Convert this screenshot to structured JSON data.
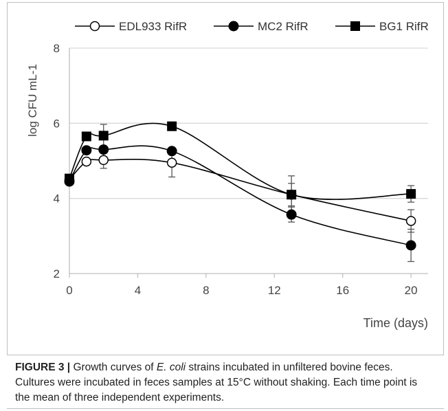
{
  "chart_data": {
    "type": "line",
    "xlabel": "Time (days)",
    "ylabel": "log CFU mL-1",
    "xlim": [
      0,
      21
    ],
    "ylim": [
      2,
      8
    ],
    "xticks": [
      "0",
      "4",
      "8",
      "12",
      "16",
      "20"
    ],
    "yticks": [
      "2",
      "4",
      "6",
      "8"
    ],
    "grid": "horizontal",
    "legend_position": "top",
    "series": [
      {
        "name": "EDL933 RifR",
        "marker": "open-circle",
        "color": "#000000",
        "points": [
          {
            "x": 0,
            "y": 4.5,
            "err": 0.05
          },
          {
            "x": 1,
            "y": 4.98,
            "err": 0.05
          },
          {
            "x": 2,
            "y": 5.02,
            "err": 0.22
          },
          {
            "x": 6,
            "y": 4.95,
            "err": 0.38
          },
          {
            "x": 13,
            "y": 4.1,
            "err": 0.3
          },
          {
            "x": 20,
            "y": 3.4,
            "err": 0.3
          }
        ]
      },
      {
        "name": "MC2 RifR",
        "marker": "filled-circle",
        "color": "#000000",
        "points": [
          {
            "x": 0,
            "y": 4.45,
            "err": 0.05
          },
          {
            "x": 1,
            "y": 5.28,
            "err": 0.05
          },
          {
            "x": 2,
            "y": 5.3,
            "err": 0.1
          },
          {
            "x": 6,
            "y": 5.26,
            "err": 0.05
          },
          {
            "x": 13,
            "y": 3.57,
            "err": 0.2
          },
          {
            "x": 20,
            "y": 2.75,
            "err": 0.43
          }
        ]
      },
      {
        "name": "BG1 RifR",
        "marker": "filled-square",
        "color": "#000000",
        "points": [
          {
            "x": 0,
            "y": 4.53,
            "err": 0.05
          },
          {
            "x": 1,
            "y": 5.65,
            "err": 0.1
          },
          {
            "x": 2,
            "y": 5.67,
            "err": 0.3
          },
          {
            "x": 6,
            "y": 5.92,
            "err": 0.05
          },
          {
            "x": 13,
            "y": 4.1,
            "err": 0.5
          },
          {
            "x": 20,
            "y": 4.12,
            "err": 0.22
          }
        ]
      }
    ]
  },
  "caption": {
    "label": "FIGURE 3 |",
    "text_before_italic": " Growth curves of ",
    "italic": "E. coli",
    "text_after_italic": " strains incubated in unfiltered bovine feces. Cultures were incubated in feces samples at 15°C without shaking. Each time point is the mean of three independent experiments."
  }
}
